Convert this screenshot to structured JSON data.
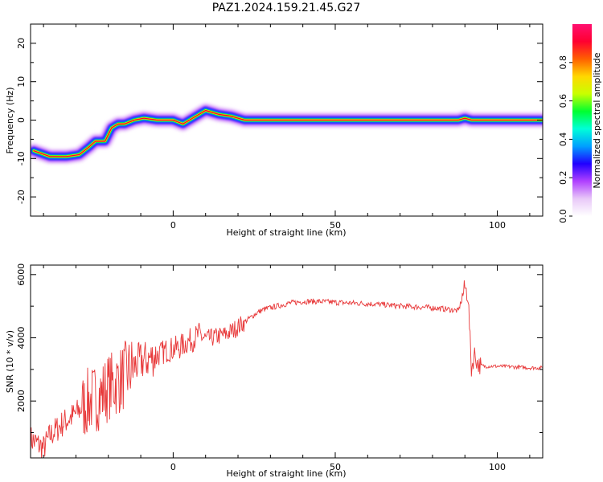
{
  "figure_title": "PAZ1.2024.159.21.45.G27",
  "chart_data": [
    {
      "type": "heatmap",
      "xlabel": "Height of straight line (km)",
      "ylabel": "Frequency (Hz)",
      "xlim": [
        -44,
        114
      ],
      "ylim": [
        -25,
        25
      ],
      "xticks": [
        0,
        50,
        100
      ],
      "xtick_labels": [
        "0",
        "50",
        "100"
      ],
      "yticks": [
        -20,
        -10,
        0,
        10,
        20
      ],
      "ytick_labels": [
        "-20",
        "-10",
        "0",
        "10",
        "20"
      ],
      "colorbar": {
        "label": "Normalized spectral amplitude",
        "range": [
          0,
          1
        ],
        "ticks": [
          0.0,
          0.2,
          0.4,
          0.6,
          0.8
        ],
        "tick_labels": [
          "0.0",
          "0.2",
          "0.4",
          "0.6",
          "0.8"
        ],
        "colormap": [
          "#ffffff",
          "#e8c8f8",
          "#b040ff",
          "#2000ff",
          "#00a0ff",
          "#00ffd8",
          "#00ff30",
          "#c8ff00",
          "#ffd800",
          "#ff6000",
          "#ff0030",
          "#ff1070"
        ]
      },
      "ridge": {
        "x": [
          -43,
          -38,
          -33,
          -29,
          -26,
          -24,
          -21,
          -19,
          -17,
          -15,
          -12,
          -9,
          -5,
          0,
          3,
          7,
          10,
          14,
          18,
          22,
          26,
          30,
          40,
          50,
          60,
          70,
          80,
          88,
          90,
          92,
          95,
          100,
          110,
          114
        ],
        "freq": [
          -8,
          -9.5,
          -9.5,
          -9,
          -7,
          -5.5,
          -5.5,
          -2,
          -1,
          -1,
          0,
          0.5,
          0,
          0,
          -1,
          1,
          2.5,
          1.5,
          1,
          0,
          0,
          0,
          0,
          0,
          0,
          0,
          0,
          0,
          0.5,
          0,
          0,
          0,
          0,
          0
        ]
      }
    },
    {
      "type": "line",
      "xlabel": "Height of straight line (km)",
      "ylabel": "SNR (10 * v/v)",
      "xlim": [
        -44,
        114
      ],
      "ylim": [
        200,
        6300
      ],
      "xticks": [
        0,
        50,
        100
      ],
      "xtick_labels": [
        "0",
        "50",
        "100"
      ],
      "yticks": [
        2000,
        4000,
        6000
      ],
      "ytick_labels": [
        "2000",
        "4000",
        "6000"
      ],
      "line_color": "#e8393a",
      "series": [
        {
          "x": [
            -44,
            -42,
            -40,
            -38,
            -36,
            -34,
            -32,
            -30,
            -28,
            -26,
            -24,
            -22,
            -20,
            -18,
            -16,
            -14,
            -12,
            -10,
            -8,
            -6,
            -4,
            -2,
            0,
            2,
            4,
            6,
            8,
            10,
            12,
            14,
            16,
            18,
            20,
            22,
            24,
            26,
            28,
            30,
            32,
            34,
            36,
            38,
            40,
            45,
            50,
            55,
            60,
            65,
            70,
            75,
            80,
            85,
            88,
            90,
            91,
            92,
            93,
            94,
            96,
            100,
            105,
            110,
            114
          ],
          "y": [
            800,
            650,
            500,
            900,
            1100,
            1300,
            1450,
            1600,
            1800,
            2000,
            2100,
            2200,
            2450,
            2550,
            2700,
            2900,
            3100,
            3250,
            3300,
            3400,
            3500,
            3600,
            3650,
            3700,
            3850,
            3950,
            4100,
            3950,
            4000,
            4050,
            4100,
            4200,
            4350,
            4500,
            4650,
            4800,
            4900,
            4950,
            5000,
            5050,
            5100,
            5120,
            5150,
            5150,
            5120,
            5100,
            5080,
            5050,
            5000,
            4980,
            4950,
            4900,
            4850,
            5600,
            5300,
            3000,
            3500,
            3150,
            3100,
            3100,
            3080,
            3050,
            3050
          ]
        }
      ]
    }
  ]
}
